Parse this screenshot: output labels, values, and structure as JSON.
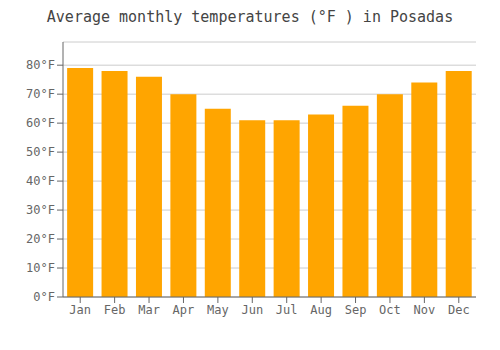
{
  "chart_data": {
    "type": "bar",
    "title": "Average monthly temperatures (°F ) in Posadas",
    "categories": [
      "Jan",
      "Feb",
      "Mar",
      "Apr",
      "May",
      "Jun",
      "Jul",
      "Aug",
      "Sep",
      "Oct",
      "Nov",
      "Dec"
    ],
    "values": [
      79,
      78,
      76,
      70,
      65,
      61,
      61,
      63,
      66,
      70,
      74,
      78
    ],
    "color": "#FFA500",
    "ylim": [
      0,
      88
    ],
    "yticks": [
      {
        "value": 0,
        "label": "0°F"
      },
      {
        "value": 10,
        "label": "10°F"
      },
      {
        "value": 20,
        "label": "20°F"
      },
      {
        "value": 30,
        "label": "30°F"
      },
      {
        "value": 40,
        "label": "40°F"
      },
      {
        "value": 50,
        "label": "50°F"
      },
      {
        "value": 60,
        "label": "60°F"
      },
      {
        "value": 70,
        "label": "70°F"
      },
      {
        "value": 80,
        "label": "80°F"
      }
    ],
    "grid": true
  }
}
